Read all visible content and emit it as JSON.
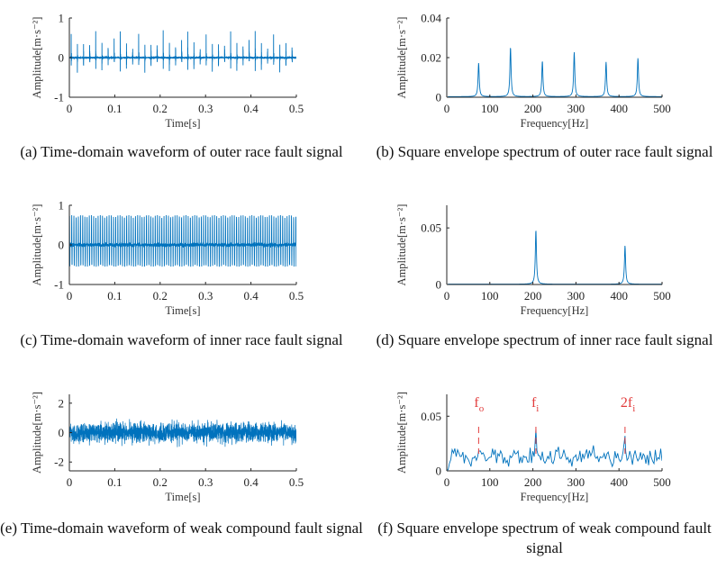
{
  "chart_data": [
    {
      "panel": "a",
      "type": "line",
      "caption": "(a) Time-domain waveform of outer race fault signal",
      "xlabel": "Time[s]",
      "ylabel": "Amplitude[m·s⁻²]",
      "xlim": [
        0,
        0.5
      ],
      "ylim": [
        -1,
        1
      ],
      "xticks": [
        0,
        0.1,
        0.2,
        0.3,
        0.4,
        0.5
      ],
      "xticklabels": [
        "0",
        "0.1",
        "0.2",
        "0.3",
        "0.4",
        "0.5"
      ],
      "yticks": [
        1,
        0,
        -1
      ],
      "yticklabels": [
        "1",
        "0",
        "-1"
      ],
      "signal": {
        "kind": "impulse_train",
        "interval_s": 0.01351,
        "first_s": 0.004,
        "peak_pos": 0.7,
        "peak_neg": -0.5,
        "noise": 0.02
      }
    },
    {
      "panel": "b",
      "type": "line",
      "caption": "(b) Square envelope spectrum of outer race fault signal",
      "xlabel": "Frequency[Hz]",
      "ylabel": "Amplitude[m·s⁻²]",
      "xlim": [
        0,
        500
      ],
      "ylim": [
        0,
        0.04
      ],
      "xticks": [
        0,
        100,
        200,
        300,
        400,
        500
      ],
      "xticklabels": [
        "0",
        "100",
        "200",
        "300",
        "400",
        "500"
      ],
      "yticks": [
        0.04,
        0.02,
        0
      ],
      "yticklabels": [
        "0.04",
        "0.02",
        "0"
      ],
      "peaks": [
        {
          "x": 74,
          "y": 0.017
        },
        {
          "x": 148,
          "y": 0.025
        },
        {
          "x": 222,
          "y": 0.018
        },
        {
          "x": 296,
          "y": 0.0225
        },
        {
          "x": 370,
          "y": 0.0175
        },
        {
          "x": 444,
          "y": 0.0195
        }
      ]
    },
    {
      "panel": "c",
      "type": "line",
      "caption": "(c) Time-domain waveform of inner race fault signal",
      "xlabel": "Time[s]",
      "ylabel": "Amplitude[m·s⁻²]",
      "xlim": [
        0,
        0.5
      ],
      "ylim": [
        -1,
        1
      ],
      "xticks": [
        0,
        0.1,
        0.2,
        0.3,
        0.4,
        0.5
      ],
      "xticklabels": [
        "0",
        "0.1",
        "0.2",
        "0.3",
        "0.4",
        "0.5"
      ],
      "yticks": [
        1,
        0,
        -1
      ],
      "yticklabels": [
        "1",
        "0",
        "-1"
      ],
      "signal": {
        "kind": "dense_oscillation",
        "period_s": 0.00484,
        "amp_pos": 0.75,
        "amp_neg": -0.55
      }
    },
    {
      "panel": "d",
      "type": "line",
      "caption": "(d) Square envelope spectrum of inner race fault signal",
      "xlabel": "Frequency[Hz]",
      "ylabel": "Amplitude[m·s⁻²]",
      "xlim": [
        0,
        500
      ],
      "ylim": [
        0,
        0.07
      ],
      "xticks": [
        0,
        100,
        200,
        300,
        400,
        500
      ],
      "xticklabels": [
        "0",
        "100",
        "200",
        "300",
        "400",
        "500"
      ],
      "yticks": [
        0.05,
        0
      ],
      "yticklabels": [
        "0.05",
        "0"
      ],
      "peaks": [
        {
          "x": 207,
          "y": 0.048
        },
        {
          "x": 414,
          "y": 0.034
        }
      ]
    },
    {
      "panel": "e",
      "type": "line",
      "caption": "(e) Time-domain waveform of weak compound fault signal",
      "xlabel": "Time[s]",
      "ylabel": "Amplitude[m·s⁻²]",
      "xlim": [
        0,
        0.5
      ],
      "ylim": [
        -2.6,
        2.6
      ],
      "xticks": [
        0,
        0.1,
        0.2,
        0.3,
        0.4,
        0.5
      ],
      "xticklabels": [
        "0",
        "0.1",
        "0.2",
        "0.3",
        "0.4",
        "0.5"
      ],
      "yticks": [
        2,
        0,
        -2
      ],
      "yticklabels": [
        "2",
        "0",
        "-2"
      ],
      "signal": {
        "kind": "noise",
        "std": 0.55,
        "max_abs": 2.2
      }
    },
    {
      "panel": "f",
      "type": "line",
      "caption": "(f) Square envelope spectrum of weak compound fault signal",
      "xlabel": "Frequency[Hz]",
      "ylabel": "Amplitude[m·s⁻²]",
      "xlim": [
        0,
        500
      ],
      "ylim": [
        0,
        0.07
      ],
      "xticks": [
        0,
        100,
        200,
        300,
        400,
        500
      ],
      "xticklabels": [
        "0",
        "100",
        "200",
        "300",
        "400",
        "500"
      ],
      "yticks": [
        0.05,
        0
      ],
      "yticklabels": [
        "0.05",
        "0"
      ],
      "signal": {
        "kind": "noisy_spectrum",
        "baseline": 0.013,
        "spread": 0.011,
        "peak_at": [
          74,
          207,
          414
        ],
        "peak_vals": [
          0.018,
          0.038,
          0.032
        ]
      },
      "annotations": [
        {
          "base": "f",
          "sub": "o",
          "x": 74
        },
        {
          "base": "f",
          "sub": "i",
          "x": 207
        },
        {
          "base": "2f",
          "sub": "i",
          "x": 414
        }
      ]
    }
  ],
  "colors": {
    "line": "#0072BD",
    "annotation": "#e23b3b",
    "axis": "#262626"
  }
}
